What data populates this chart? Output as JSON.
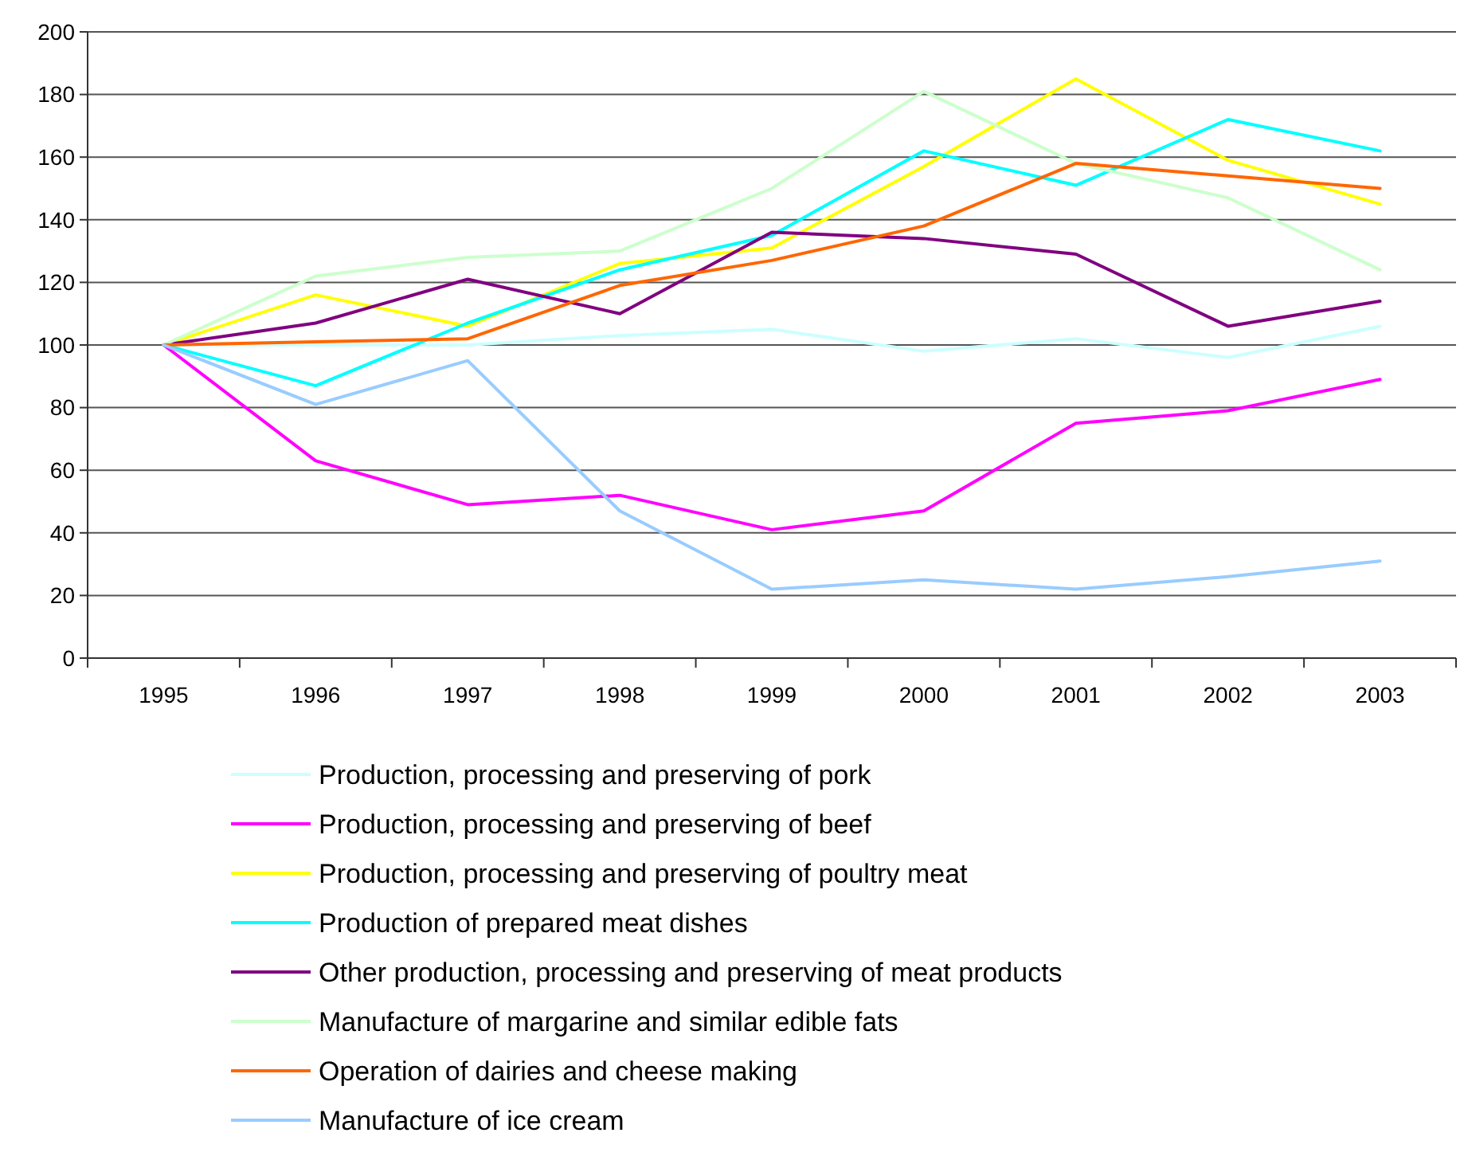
{
  "chart_data": {
    "type": "line",
    "categories": [
      "1995",
      "1996",
      "1997",
      "1998",
      "1999",
      "2000",
      "2001",
      "2002",
      "2003"
    ],
    "ylim": [
      0,
      200
    ],
    "yticks": [
      0,
      20,
      40,
      60,
      80,
      100,
      120,
      140,
      160,
      180,
      200
    ],
    "grid": "y",
    "legend": "bottom",
    "marker": "none",
    "line_style": "solid",
    "series": [
      {
        "name": "Production, processing and preserving of pork",
        "color": "#ccffff",
        "values": [
          100,
          100,
          100,
          103,
          105,
          98,
          102,
          96,
          106
        ]
      },
      {
        "name": "Production, processing and preserving of beef",
        "color": "#ff00ff",
        "values": [
          100,
          63,
          49,
          52,
          41,
          47,
          75,
          79,
          89
        ]
      },
      {
        "name": "Production, processing and preserving of poultry meat",
        "color": "#ffff00",
        "values": [
          100,
          116,
          106,
          126,
          131,
          157,
          185,
          159,
          145
        ]
      },
      {
        "name": "Production of prepared meat dishes",
        "color": "#00ffff",
        "values": [
          100,
          87,
          107,
          124,
          135,
          162,
          151,
          172,
          162
        ]
      },
      {
        "name": "Other production, processing and preserving of meat products",
        "color": "#800080",
        "values": [
          100,
          107,
          121,
          110,
          136,
          134,
          129,
          106,
          114
        ]
      },
      {
        "name": "Manufacture of margarine and similar edible fats",
        "color": "#ccffcc",
        "values": [
          100,
          122,
          128,
          130,
          150,
          181,
          158,
          147,
          124
        ]
      },
      {
        "name": "Operation of dairies and cheese making",
        "color": "#ff6600",
        "values": [
          100,
          101,
          102,
          119,
          127,
          138,
          158,
          154,
          150
        ]
      },
      {
        "name": "Manufacture of ice cream",
        "color": "#99ccff",
        "values": [
          100,
          81,
          95,
          47,
          22,
          25,
          22,
          26,
          31
        ]
      }
    ]
  }
}
